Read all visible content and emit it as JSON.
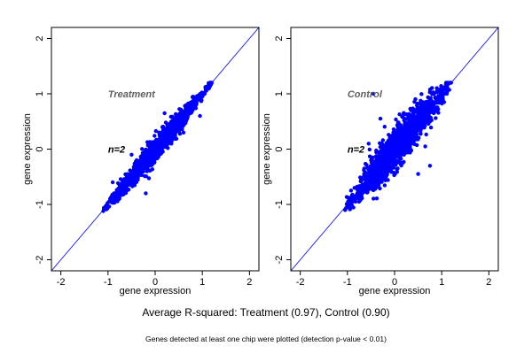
{
  "figure": {
    "caption": "Average R-squared: Treatment (0.97), Control (0.90)",
    "footnote": "Genes detected at least one chip were plotted (detection p-value < 0.01)"
  },
  "colors": {
    "points": "#0000ff",
    "reference_line": "#0000ff",
    "panel_label": "#606060",
    "n_label": "#000000",
    "axis": "#000000",
    "background": "#ffffff"
  },
  "chart_data": [
    {
      "type": "scatter",
      "title": "",
      "panel_label": "Treatment",
      "n_label": "n=2",
      "xlabel": "gene expression",
      "ylabel": "gene expression",
      "xlim": [
        -2.2,
        2.2
      ],
      "ylim": [
        -2.2,
        2.2
      ],
      "xticks": [
        -2,
        -1,
        0,
        1,
        2
      ],
      "yticks": [
        -2,
        -1,
        0,
        1,
        2
      ],
      "xtick_labels": [
        "-2",
        "-1",
        "0",
        "1",
        "2"
      ],
      "ytick_labels": [
        "-2",
        "-1",
        "0",
        "1",
        "2"
      ],
      "reference_line": {
        "slope": 1,
        "intercept": 0
      },
      "grid": false,
      "r_squared": 0.97,
      "summary": {
        "x_range": [
          -1.1,
          1.2
        ],
        "y_range": [
          -1.1,
          1.2
        ],
        "spread_around_identity": 0.1
      },
      "points": [
        [
          -1.1,
          -1.12
        ],
        [
          -0.9,
          -0.85
        ],
        [
          -0.75,
          -0.8
        ],
        [
          -0.6,
          -0.5
        ],
        [
          -0.45,
          -0.35
        ],
        [
          -0.3,
          -0.38
        ],
        [
          -0.2,
          -0.05
        ],
        [
          -0.1,
          -0.2
        ],
        [
          0.0,
          0.05
        ],
        [
          0.1,
          0.2
        ],
        [
          0.2,
          0.1
        ],
        [
          0.3,
          0.4
        ],
        [
          0.45,
          0.35
        ],
        [
          0.6,
          0.68
        ],
        [
          0.75,
          0.7
        ],
        [
          0.9,
          0.95
        ],
        [
          1.05,
          1.0
        ],
        [
          1.2,
          1.2
        ],
        [
          -0.2,
          -0.8
        ],
        [
          0.6,
          0.3
        ],
        [
          -0.5,
          -0.1
        ],
        [
          0.2,
          0.65
        ],
        [
          -0.9,
          -0.6
        ],
        [
          0.95,
          0.6
        ]
      ]
    },
    {
      "type": "scatter",
      "title": "",
      "panel_label": "Control",
      "n_label": "n=2",
      "xlabel": "gene expression",
      "ylabel": "gene expression",
      "xlim": [
        -2.2,
        2.2
      ],
      "ylim": [
        -2.2,
        2.2
      ],
      "xticks": [
        -2,
        -1,
        0,
        1,
        2
      ],
      "yticks": [
        -2,
        -1,
        0,
        1,
        2
      ],
      "xtick_labels": [
        "-2",
        "-1",
        "0",
        "1",
        "2"
      ],
      "ytick_labels": [
        "-2",
        "-1",
        "0",
        "1",
        "2"
      ],
      "reference_line": {
        "slope": 1,
        "intercept": 0
      },
      "grid": false,
      "r_squared": 0.9,
      "summary": {
        "x_range": [
          -1.05,
          1.2
        ],
        "y_range": [
          -1.1,
          1.2
        ],
        "spread_around_identity": 0.2
      },
      "points": [
        [
          -1.05,
          -1.1
        ],
        [
          -0.85,
          -0.7
        ],
        [
          -0.7,
          -0.85
        ],
        [
          -0.5,
          -0.2
        ],
        [
          -0.4,
          -0.6
        ],
        [
          -0.3,
          0.1
        ],
        [
          -0.2,
          -0.4
        ],
        [
          -0.1,
          0.2
        ],
        [
          0.0,
          -0.15
        ],
        [
          0.1,
          0.4
        ],
        [
          0.2,
          -0.1
        ],
        [
          0.3,
          0.6
        ],
        [
          0.45,
          0.2
        ],
        [
          0.6,
          0.85
        ],
        [
          0.75,
          0.5
        ],
        [
          0.9,
          1.05
        ],
        [
          1.05,
          0.85
        ],
        [
          1.2,
          1.2
        ],
        [
          -0.3,
          0.55
        ],
        [
          0.5,
          -0.45
        ],
        [
          -0.55,
          0.1
        ],
        [
          0.65,
          0.05
        ],
        [
          -0.45,
          1.0
        ],
        [
          0.75,
          -0.3
        ]
      ]
    }
  ]
}
